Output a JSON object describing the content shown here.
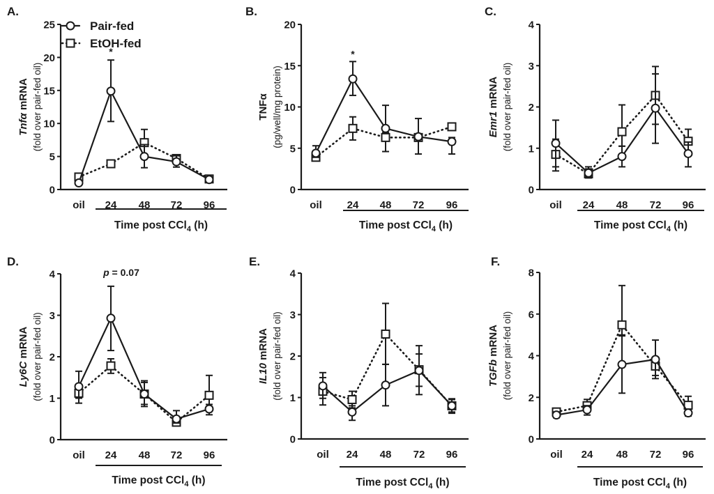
{
  "legend": {
    "entries": [
      {
        "name": "Pair-fed",
        "marker": "circle",
        "line": "solid"
      },
      {
        "name": "EtOH-fed",
        "marker": "square",
        "line": "dotted"
      }
    ]
  },
  "chart_data": [
    {
      "type": "line",
      "panel": "A.",
      "title": "",
      "ylabel_gene": "Tnfα",
      "ylabel_main": " mRNA",
      "ylabel_sub": "(fold over pair-fed oil)",
      "xlabel": "Time post CCl",
      "xlabel_sub": "4",
      "xlabel_suffix": " (h)",
      "categories": [
        "oil",
        "24",
        "48",
        "72",
        "96"
      ],
      "ylim": [
        0,
        25
      ],
      "yticks": [
        0,
        5,
        10,
        15,
        20,
        25
      ],
      "legend_position": "top-left",
      "series": [
        {
          "name": "Pair-fed",
          "values": [
            1.0,
            14.9,
            5.0,
            4.2,
            1.5
          ],
          "err_upper": [
            1.2,
            19.6,
            6.8,
            5.1,
            1.8
          ],
          "err_lower": [
            0.8,
            10.3,
            3.3,
            3.4,
            1.3
          ]
        },
        {
          "name": "EtOH-fed",
          "values": [
            1.9,
            3.9,
            7.1,
            4.7,
            1.6
          ],
          "err_upper": [
            2.2,
            4.2,
            9.1,
            5.2,
            1.8
          ],
          "err_lower": [
            1.6,
            3.6,
            5.2,
            4.2,
            1.4
          ]
        }
      ],
      "annotations": [
        {
          "text": "*",
          "category": "24",
          "y": 21
        }
      ]
    },
    {
      "type": "line",
      "panel": "B.",
      "title": "",
      "ylabel_gene": "",
      "ylabel_main": "TNFα",
      "ylabel_sub": "(pg/well/mg protein)",
      "xlabel": "Time post CCl",
      "xlabel_sub": "4",
      "xlabel_suffix": " (h)",
      "categories": [
        "oil",
        "24",
        "48",
        "72",
        "96"
      ],
      "ylim": [
        0,
        20
      ],
      "yticks": [
        0,
        5,
        10,
        15,
        20
      ],
      "series": [
        {
          "name": "Pair-fed",
          "values": [
            4.4,
            13.4,
            7.4,
            6.4,
            5.8
          ],
          "err_upper": [
            5.3,
            15.5,
            10.2,
            8.6,
            6.3
          ],
          "err_lower": [
            3.9,
            11.4,
            6.9,
            4.3,
            4.3
          ]
        },
        {
          "name": "EtOH-fed",
          "values": [
            3.9,
            7.4,
            6.3,
            6.3,
            7.6
          ],
          "err_upper": [
            4.3,
            8.8,
            6.8,
            6.6,
            8.0
          ],
          "err_lower": [
            3.6,
            6.0,
            4.6,
            6.0,
            7.2
          ]
        }
      ],
      "annotations": [
        {
          "text": "*",
          "category": "24",
          "y": 16.5
        }
      ]
    },
    {
      "type": "line",
      "panel": "C.",
      "title": "",
      "ylabel_gene": "Emr1",
      "ylabel_main": " mRNA",
      "ylabel_sub": "(fold over pair-fed oil)",
      "xlabel": "Time post CCl",
      "xlabel_sub": "4",
      "xlabel_suffix": " (h)",
      "categories": [
        "oil",
        "24",
        "48",
        "72",
        "96"
      ],
      "ylim": [
        0,
        4
      ],
      "yticks": [
        0,
        1,
        2,
        3,
        4
      ],
      "series": [
        {
          "name": "Pair-fed",
          "values": [
            1.12,
            0.4,
            0.8,
            1.97,
            0.87
          ],
          "err_upper": [
            1.68,
            0.55,
            1.05,
            2.8,
            1.15
          ],
          "err_lower": [
            0.55,
            0.3,
            0.55,
            1.12,
            0.55
          ]
        },
        {
          "name": "EtOH-fed",
          "values": [
            0.85,
            0.38,
            1.4,
            2.28,
            1.17
          ],
          "err_upper": [
            1.22,
            0.5,
            2.05,
            2.98,
            1.46
          ],
          "err_lower": [
            0.45,
            0.28,
            1.05,
            1.58,
            0.9
          ]
        }
      ],
      "annotations": []
    },
    {
      "type": "line",
      "panel": "D.",
      "title": "",
      "ylabel_gene": "Ly6C",
      "ylabel_main": " mRNA",
      "ylabel_sub": "(fold over pair-fed oil)",
      "xlabel": "Time post CCl",
      "xlabel_sub": "4",
      "xlabel_suffix": " (h)",
      "categories": [
        "oil",
        "24",
        "48",
        "72",
        "96"
      ],
      "ylim": [
        0,
        4
      ],
      "yticks": [
        0,
        1,
        2,
        3,
        4
      ],
      "series": [
        {
          "name": "Pair-fed",
          "values": [
            1.28,
            2.93,
            1.1,
            0.5,
            0.74
          ],
          "err_upper": [
            1.65,
            3.7,
            1.42,
            0.7,
            0.85
          ],
          "err_lower": [
            1.0,
            2.15,
            0.8,
            0.4,
            0.6
          ]
        },
        {
          "name": "EtOH-fed",
          "values": [
            1.12,
            1.78,
            1.1,
            0.42,
            1.07
          ],
          "err_upper": [
            1.3,
            1.95,
            1.38,
            0.55,
            1.55
          ],
          "err_lower": [
            0.88,
            1.6,
            0.85,
            0.35,
            0.8
          ]
        }
      ],
      "annotations": [
        {
          "text_italic": "p",
          "text": " = 0.07",
          "category": "24",
          "y": 3.95
        }
      ]
    },
    {
      "type": "line",
      "panel": "E.",
      "title": "",
      "ylabel_gene": "IL10",
      "ylabel_main": " mRNA",
      "ylabel_sub": "(fold over pair-fed oil)",
      "xlabel": "Time post CCl",
      "xlabel_sub": "4",
      "xlabel_suffix": " (h)",
      "categories": [
        "oil",
        "24",
        "48",
        "72",
        "96"
      ],
      "ylim": [
        0,
        4
      ],
      "yticks": [
        0,
        1,
        2,
        3,
        4
      ],
      "series": [
        {
          "name": "Pair-fed",
          "values": [
            1.28,
            0.65,
            1.3,
            1.65,
            0.8
          ],
          "err_upper": [
            1.6,
            0.8,
            1.8,
            2.25,
            0.97
          ],
          "err_lower": [
            0.98,
            0.45,
            0.8,
            1.07,
            0.65
          ]
        },
        {
          "name": "EtOH-fed",
          "values": [
            1.15,
            0.95,
            2.53,
            1.67,
            0.8
          ],
          "err_upper": [
            1.48,
            1.15,
            3.27,
            2.05,
            0.95
          ],
          "err_lower": [
            0.82,
            0.75,
            1.8,
            1.27,
            0.62
          ]
        }
      ],
      "annotations": []
    },
    {
      "type": "line",
      "panel": "F.",
      "title": "",
      "ylabel_gene": "TGFb",
      "ylabel_main": " mRNA",
      "ylabel_sub": "(fold over pair-fed oil)",
      "xlabel": "Time post CCl",
      "xlabel_sub": "4",
      "xlabel_suffix": " (h)",
      "categories": [
        "oil",
        "24",
        "48",
        "72",
        "96"
      ],
      "ylim": [
        0,
        8
      ],
      "yticks": [
        0,
        2,
        4,
        6,
        8
      ],
      "series": [
        {
          "name": "Pair-fed",
          "values": [
            1.15,
            1.4,
            3.58,
            3.82,
            1.25
          ],
          "err_upper": [
            1.3,
            1.6,
            4.95,
            4.75,
            1.4
          ],
          "err_lower": [
            1.02,
            1.15,
            2.2,
            2.9,
            1.1
          ]
        },
        {
          "name": "EtOH-fed",
          "values": [
            1.3,
            1.6,
            5.48,
            3.5,
            1.62
          ],
          "err_upper": [
            1.45,
            1.9,
            7.37,
            3.9,
            2.05
          ],
          "err_lower": [
            1.1,
            1.35,
            5.0,
            3.05,
            1.2
          ]
        }
      ],
      "annotations": []
    }
  ]
}
